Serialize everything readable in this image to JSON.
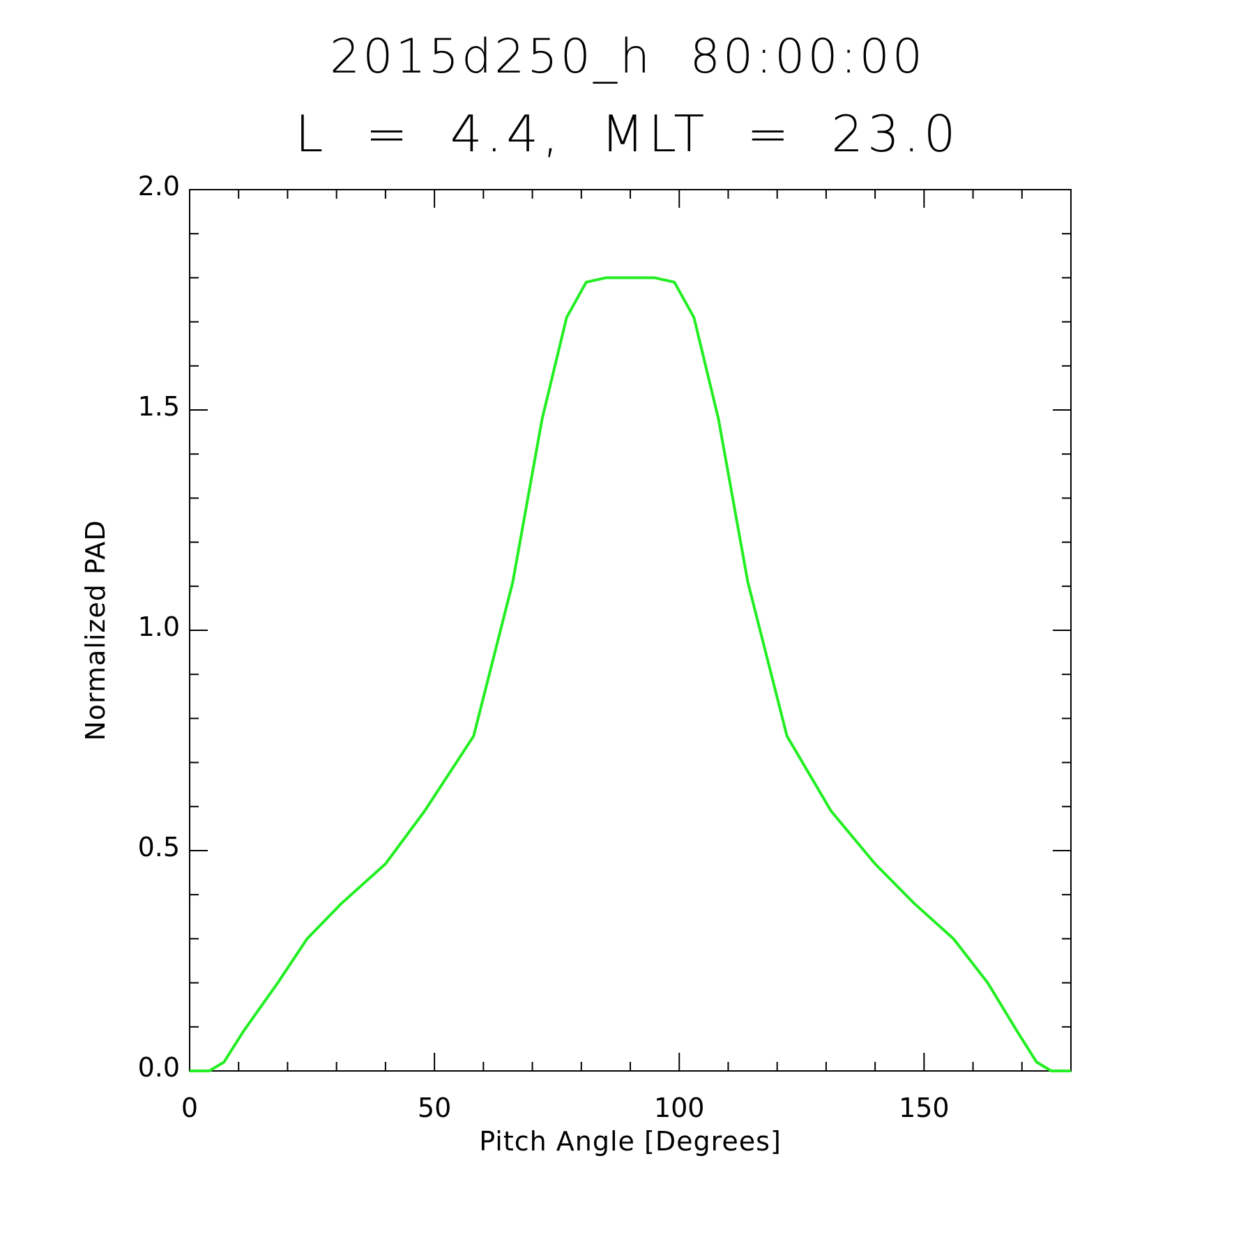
{
  "chart_data": {
    "type": "line",
    "title": "2015d250_h  80:00:00",
    "subtitle": "L = 4.4, MLT = 23.0",
    "xlabel": "Pitch Angle [Degrees]",
    "ylabel": "Normalized PAD",
    "xlim": [
      0,
      180
    ],
    "ylim": [
      0.0,
      2.0
    ],
    "x_ticks": [
      0,
      50,
      100,
      150
    ],
    "x_tick_labels": [
      "0",
      "50",
      "100",
      "150"
    ],
    "x_minor_step": 10,
    "y_ticks": [
      0.0,
      0.5,
      1.0,
      1.5,
      2.0
    ],
    "y_tick_labels": [
      "0.0",
      "0.5",
      "1.0",
      "1.5",
      "2.0"
    ],
    "y_minor_step": 0.1,
    "grid": false,
    "series": [
      {
        "color": "#22ee22",
        "x": [
          0,
          4,
          7,
          11,
          18,
          24,
          31,
          40,
          48,
          58,
          66,
          72,
          77,
          81,
          85,
          90,
          95,
          99,
          103,
          108,
          114,
          122,
          131,
          140,
          148,
          156,
          163,
          169,
          173,
          176,
          180
        ],
        "y": [
          0.0,
          0.0,
          0.02,
          0.09,
          0.2,
          0.3,
          0.38,
          0.47,
          0.59,
          0.76,
          1.11,
          1.48,
          1.71,
          1.79,
          1.8,
          1.8,
          1.8,
          1.79,
          1.71,
          1.48,
          1.11,
          0.76,
          0.59,
          0.47,
          0.38,
          0.3,
          0.2,
          0.09,
          0.02,
          0.0,
          0.0
        ]
      }
    ]
  }
}
